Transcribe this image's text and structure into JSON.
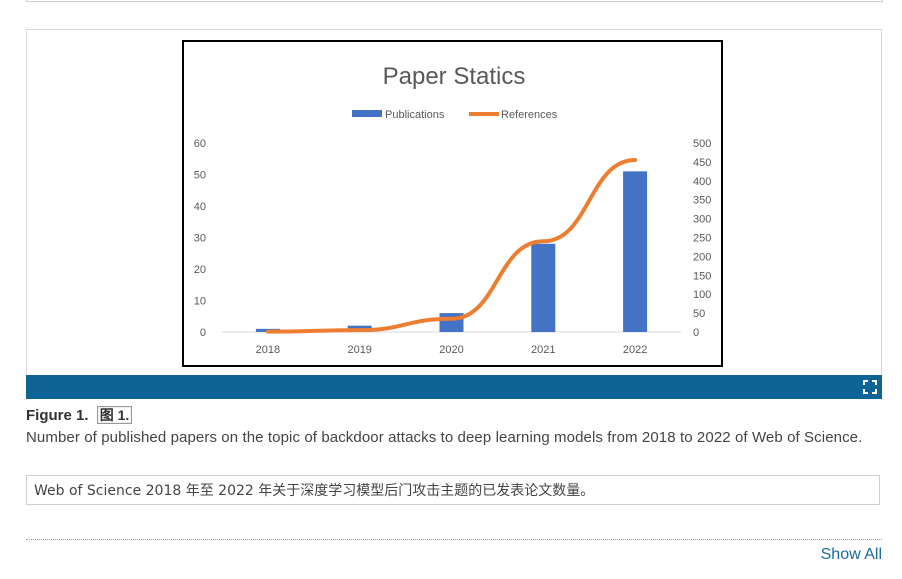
{
  "figure": {
    "label": "Figure 1.",
    "label_cn": "图 1.",
    "caption": "Number of published papers on the topic of backdoor attacks to deep learning models from 2018 to 2022 of Web of Science.",
    "caption_cn": "Web of Science 2018 年至 2022 年关于深度学习模型后门攻击主题的已发表论文数量。",
    "expand_icon": "expand-icon",
    "strip_color": "#0f6496"
  },
  "footer": {
    "show_all_label": "Show All"
  },
  "chart_data": {
    "type": "bar",
    "title": "Paper Statics",
    "categories": [
      "2018",
      "2019",
      "2020",
      "2021",
      "2022"
    ],
    "series": [
      {
        "name": "Publications",
        "type": "bar",
        "axis": "left",
        "color": "#4472c4",
        "values": [
          1,
          2,
          6,
          28,
          51
        ]
      },
      {
        "name": "References",
        "type": "line",
        "axis": "right",
        "color": "#ed7d31",
        "values": [
          1,
          5,
          35,
          240,
          455
        ]
      }
    ],
    "y_left": {
      "ticks": [
        "0",
        "10",
        "20",
        "30",
        "40",
        "50",
        "60"
      ],
      "range": [
        0,
        60
      ]
    },
    "y_right": {
      "ticks": [
        "0",
        "50",
        "100",
        "150",
        "200",
        "250",
        "300",
        "350",
        "400",
        "450",
        "500"
      ],
      "range": [
        0,
        500
      ]
    },
    "legend_position": "top"
  }
}
